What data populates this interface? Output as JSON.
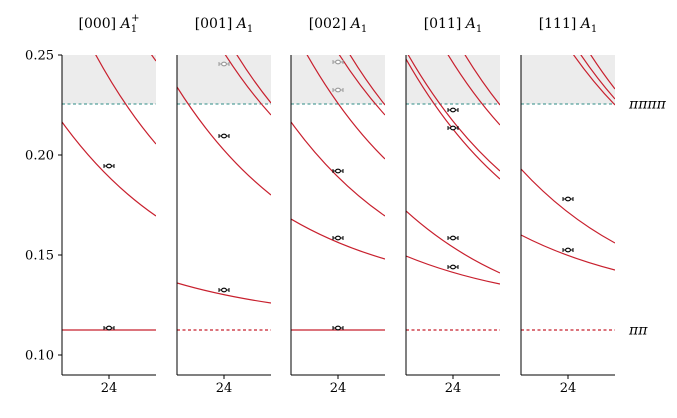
{
  "y_axis": {
    "ylim": [
      0.09,
      0.25
    ],
    "ticks": [
      0.1,
      0.15,
      0.2,
      0.25
    ],
    "tick_labels": [
      "0.10",
      "0.15",
      "0.20",
      "0.25"
    ]
  },
  "thresholds": {
    "pipi": {
      "value": 0.1125,
      "label": "ππ",
      "color": "#c8202e"
    },
    "pipipipi": {
      "value": 0.2255,
      "label": "ππππ",
      "color": "#2e8b86"
    },
    "shade_color": "#ececec"
  },
  "colors": {
    "curve": "#c8202e",
    "point": "#000000",
    "point_faint": "#9a9a9a"
  },
  "chart_data": [
    {
      "type": "scatter",
      "title_irrep": "[000]",
      "title_rep": "A",
      "title_sub": "1",
      "title_sup": "+",
      "x_tick": "24",
      "pipi_threshold_solid": true,
      "points": [
        {
          "x": 24,
          "y": 0.1135,
          "err": 0.0007,
          "faint": false
        },
        {
          "x": 24,
          "y": 0.1945,
          "err": 0.0009,
          "faint": false
        }
      ],
      "curves": [
        {
          "y_left": 0.2165,
          "y_right": 0.1695
        },
        {
          "y_left": 0.285,
          "y_right": 0.2055
        },
        {
          "y_left": 0.34,
          "y_right": 0.247
        }
      ]
    },
    {
      "type": "scatter",
      "title_irrep": "[001]",
      "title_rep": "A",
      "title_sub": "1",
      "title_sup": "",
      "x_tick": "24",
      "pipi_threshold_solid": false,
      "points": [
        {
          "x": 24,
          "y": 0.1325,
          "err": 0.0008,
          "faint": false
        },
        {
          "x": 24,
          "y": 0.2095,
          "err": 0.0009,
          "faint": false
        },
        {
          "x": 24,
          "y": 0.2455,
          "err": 0.001,
          "faint": true
        }
      ],
      "curves": [
        {
          "y_left": 0.136,
          "y_right": 0.126
        },
        {
          "y_left": 0.234,
          "y_right": 0.18
        },
        {
          "y_left": 0.295,
          "y_right": 0.22
        },
        {
          "y_left": 0.31,
          "y_right": 0.226
        }
      ]
    },
    {
      "type": "scatter",
      "title_irrep": "[002]",
      "title_rep": "A",
      "title_sub": "1",
      "title_sup": "",
      "x_tick": "24",
      "pipi_threshold_solid": true,
      "points": [
        {
          "x": 24,
          "y": 0.1135,
          "err": 0.0009,
          "faint": false
        },
        {
          "x": 24,
          "y": 0.1585,
          "err": 0.0011,
          "faint": false
        },
        {
          "x": 24,
          "y": 0.192,
          "err": 0.001,
          "faint": false
        },
        {
          "x": 24,
          "y": 0.2325,
          "err": 0.001,
          "faint": true
        },
        {
          "x": 24,
          "y": 0.2465,
          "err": 0.001,
          "faint": true
        }
      ],
      "curves": [
        {
          "y_left": 0.168,
          "y_right": 0.148
        },
        {
          "y_left": 0.2165,
          "y_right": 0.1695
        },
        {
          "y_left": 0.265,
          "y_right": 0.198
        },
        {
          "y_left": 0.295,
          "y_right": 0.22
        },
        {
          "y_left": 0.31,
          "y_right": 0.225
        }
      ]
    },
    {
      "type": "scatter",
      "title_irrep": "[011]",
      "title_rep": "A",
      "title_sub": "1",
      "title_sup": "",
      "x_tick": "24",
      "pipi_threshold_solid": false,
      "points": [
        {
          "x": 24,
          "y": 0.144,
          "err": 0.0009,
          "faint": false
        },
        {
          "x": 24,
          "y": 0.1585,
          "err": 0.0009,
          "faint": false
        },
        {
          "x": 24,
          "y": 0.2135,
          "err": 0.0009,
          "faint": false
        },
        {
          "x": 24,
          "y": 0.2225,
          "err": 0.001,
          "faint": false
        }
      ],
      "curves": [
        {
          "y_left": 0.1495,
          "y_right": 0.1355
        },
        {
          "y_left": 0.172,
          "y_right": 0.141
        },
        {
          "y_left": 0.248,
          "y_right": 0.188
        },
        {
          "y_left": 0.252,
          "y_right": 0.192
        },
        {
          "y_left": 0.29,
          "y_right": 0.215
        },
        {
          "y_left": 0.31,
          "y_right": 0.225
        }
      ]
    },
    {
      "type": "scatter",
      "title_irrep": "[111]",
      "title_rep": "A",
      "title_sub": "1",
      "title_sup": "",
      "x_tick": "24",
      "pipi_threshold_solid": false,
      "points": [
        {
          "x": 24,
          "y": 0.1525,
          "err": 0.0009,
          "faint": false
        },
        {
          "x": 24,
          "y": 0.178,
          "err": 0.0009,
          "faint": false
        }
      ],
      "curves": [
        {
          "y_left": 0.16,
          "y_right": 0.1425
        },
        {
          "y_left": 0.193,
          "y_right": 0.156
        },
        {
          "y_left": 0.295,
          "y_right": 0.225
        },
        {
          "y_left": 0.305,
          "y_right": 0.228
        },
        {
          "y_left": 0.32,
          "y_right": 0.233
        }
      ]
    }
  ]
}
